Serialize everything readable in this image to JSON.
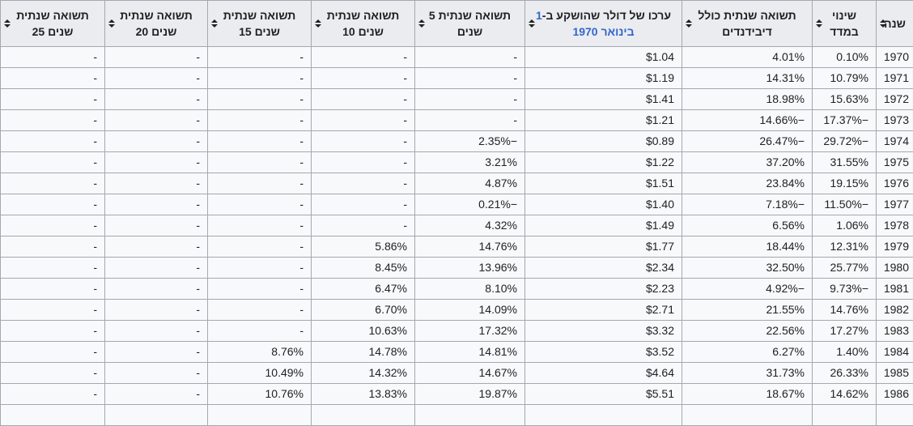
{
  "colors": {
    "header_bg": "#eaecf0",
    "row_bg": "#f8f9fa",
    "border": "#a2a9b1",
    "text": "#202122",
    "link_blue": "#3366cc"
  },
  "icons": {
    "sort": "sort-up-down-triangles"
  },
  "table": {
    "dir": "rtl",
    "columns": [
      {
        "id": "year",
        "full_label": "שנה",
        "line1": "שנה",
        "line2": ""
      },
      {
        "id": "index-change",
        "full_label": "שינוי במדד",
        "line1": "שינוי",
        "line2": "במדד"
      },
      {
        "id": "total-return-dividends",
        "full_label": "תשואה שנתית כולל דיבידנדים",
        "line1": "תשואה שנתית כולל",
        "line2": "דיבידנדים"
      },
      {
        "id": "dollar-value",
        "full_label": "ערכו של דולר שהושקע ב-1 בינואר 1970",
        "line1_prefix": "ערכו של דולר שהושקע ב-",
        "link_line1": "1",
        "link_line2": "בינואר 1970"
      },
      {
        "id": "return-5y",
        "full_label": "תשואה שנתית 5 שנים",
        "line1": "תשואה שנתית 5",
        "line2": "שנים"
      },
      {
        "id": "return-10y",
        "full_label": "תשואה שנתית 10 שנים",
        "line1": "תשואה שנתית",
        "line2": "10 שנים"
      },
      {
        "id": "return-15y",
        "full_label": "תשואה שנתית 15 שנים",
        "line1": "תשואה שנתית",
        "line2": "15 שנים"
      },
      {
        "id": "return-20y",
        "full_label": "תשואה שנתית 20 שנים",
        "line1": "תשואה שנתית",
        "line2": "20 שנים"
      },
      {
        "id": "return-25y",
        "full_label": "תשואה שנתית 25 שנים",
        "line1": "תשואה שנתית",
        "line2": "25 שנים"
      }
    ],
    "rows": [
      [
        "1970",
        "0.10%",
        "4.01%",
        "$1.04",
        "-",
        "-",
        "-",
        "-",
        "-"
      ],
      [
        "1971",
        "10.79%",
        "14.31%",
        "$1.19",
        "-",
        "-",
        "-",
        "-",
        "-"
      ],
      [
        "1972",
        "15.63%",
        "18.98%",
        "$1.41",
        "-",
        "-",
        "-",
        "-",
        "-"
      ],
      [
        "1973",
        "−17.37%",
        "−14.66%",
        "$1.21",
        "-",
        "-",
        "-",
        "-",
        "-"
      ],
      [
        "1974",
        "−29.72%",
        "−26.47%",
        "$0.89",
        "−2.35%",
        "-",
        "-",
        "-",
        "-"
      ],
      [
        "1975",
        "31.55%",
        "37.20%",
        "$1.22",
        "3.21%",
        "-",
        "-",
        "-",
        "-"
      ],
      [
        "1976",
        "19.15%",
        "23.84%",
        "$1.51",
        "4.87%",
        "-",
        "-",
        "-",
        "-"
      ],
      [
        "1977",
        "−11.50%",
        "−7.18%",
        "$1.40",
        "−0.21%",
        "-",
        "-",
        "-",
        "-"
      ],
      [
        "1978",
        "1.06%",
        "6.56%",
        "$1.49",
        "4.32%",
        "-",
        "-",
        "-",
        "-"
      ],
      [
        "1979",
        "12.31%",
        "18.44%",
        "$1.77",
        "14.76%",
        "5.86%",
        "-",
        "-",
        "-"
      ],
      [
        "1980",
        "25.77%",
        "32.50%",
        "$2.34",
        "13.96%",
        "8.45%",
        "-",
        "-",
        "-"
      ],
      [
        "1981",
        "−9.73%",
        "−4.92%",
        "$2.23",
        "8.10%",
        "6.47%",
        "-",
        "-",
        "-"
      ],
      [
        "1982",
        "14.76%",
        "21.55%",
        "$2.71",
        "14.09%",
        "6.70%",
        "-",
        "-",
        "-"
      ],
      [
        "1983",
        "17.27%",
        "22.56%",
        "$3.32",
        "17.32%",
        "10.63%",
        "-",
        "-",
        "-"
      ],
      [
        "1984",
        "1.40%",
        "6.27%",
        "$3.52",
        "14.81%",
        "14.78%",
        "8.76%",
        "-",
        "-"
      ],
      [
        "1985",
        "26.33%",
        "31.73%",
        "$4.64",
        "14.67%",
        "14.32%",
        "10.49%",
        "-",
        "-"
      ],
      [
        "1986",
        "14.62%",
        "18.67%",
        "$5.51",
        "19.87%",
        "13.83%",
        "10.76%",
        "-",
        "-"
      ]
    ],
    "has_partial_next_row": true
  }
}
